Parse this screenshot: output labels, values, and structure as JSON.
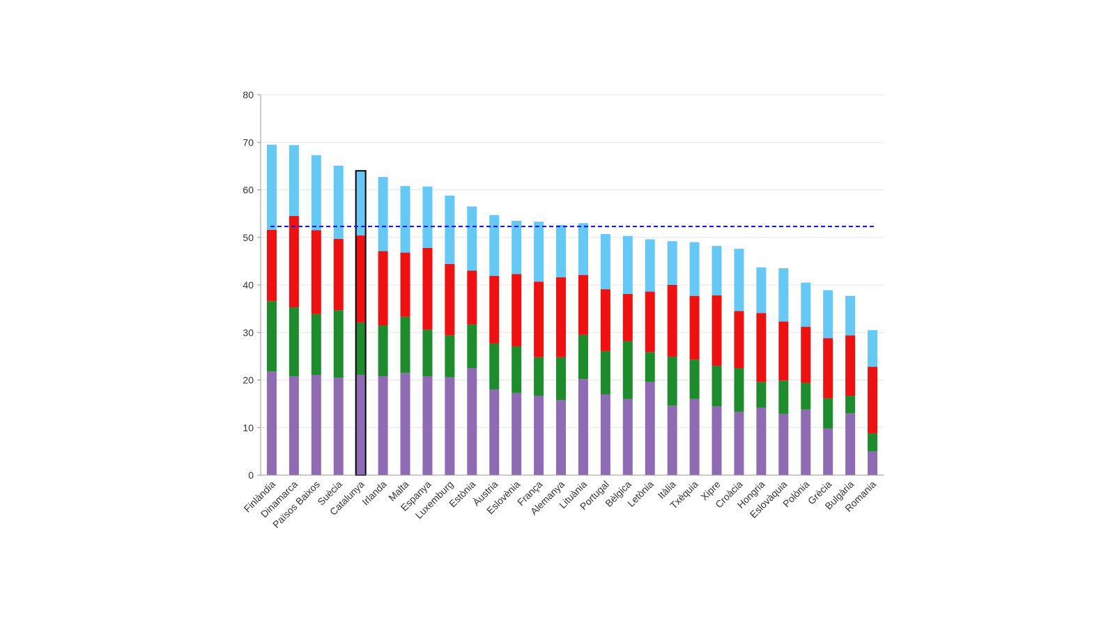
{
  "chart_data": {
    "type": "bar",
    "stacked": true,
    "categories": [
      "Finlàndia",
      "Dinamarca",
      "Països Baixos",
      "Suècia",
      "Catalunya",
      "Irlanda",
      "Malta",
      "Espanya",
      "Luxemburg",
      "Estònia",
      "Àustria",
      "Eslovènia",
      "França",
      "Alemanya",
      "Lituània",
      "Portugal",
      "Bèlgica",
      "Letònia",
      "Itàlia",
      "Txèquia",
      "Xipre",
      "Croàcia",
      "Hongria",
      "Eslovàquia",
      "Polònia",
      "Grècia",
      "Bulgària",
      "Romania"
    ],
    "series": [
      {
        "color": "#8e6bb3",
        "values": [
          21.8,
          20.8,
          21.1,
          20.5,
          21.1,
          20.8,
          21.5,
          20.8,
          20.6,
          22.5,
          18.0,
          17.3,
          16.7,
          15.8,
          20.2,
          17.0,
          16.0,
          19.6,
          14.6,
          16.0,
          14.5,
          13.3,
          14.2,
          12.9,
          13.8,
          9.8,
          13.0,
          5.0
        ]
      },
      {
        "color": "#1e8b2c",
        "values": [
          14.8,
          14.5,
          12.8,
          14.2,
          11.0,
          10.7,
          11.8,
          9.8,
          8.8,
          9.2,
          9.7,
          9.8,
          8.1,
          9.0,
          9.3,
          9.1,
          12.2,
          6.3,
          10.3,
          8.3,
          8.5,
          9.2,
          5.4,
          7.0,
          5.6,
          6.4,
          3.7,
          3.8
        ]
      },
      {
        "color": "#ee1111",
        "values": [
          15.0,
          19.2,
          17.6,
          15.0,
          18.3,
          15.6,
          13.5,
          17.2,
          15.0,
          11.3,
          14.2,
          15.2,
          15.9,
          16.8,
          12.6,
          13.0,
          9.9,
          12.7,
          15.1,
          13.4,
          14.8,
          12.0,
          14.5,
          12.4,
          11.8,
          12.6,
          12.7,
          14.0
        ]
      },
      {
        "color": "#66c8f5",
        "values": [
          17.9,
          14.9,
          15.8,
          15.4,
          13.6,
          15.6,
          14.0,
          12.9,
          14.4,
          13.5,
          12.8,
          11.2,
          12.6,
          11.0,
          10.9,
          11.6,
          12.2,
          11.0,
          9.2,
          11.3,
          10.4,
          13.1,
          9.6,
          11.2,
          9.3,
          10.1,
          8.3,
          7.7
        ]
      }
    ],
    "ylim": [
      0,
      80
    ],
    "yticks": [
      0,
      10,
      20,
      30,
      40,
      50,
      60,
      70,
      80
    ],
    "reference_line": {
      "value": 52.3,
      "color": "#1a1ae6",
      "style": "dashed"
    },
    "highlighted_category": "Catalunya",
    "gridlines": true,
    "legend": "none"
  }
}
